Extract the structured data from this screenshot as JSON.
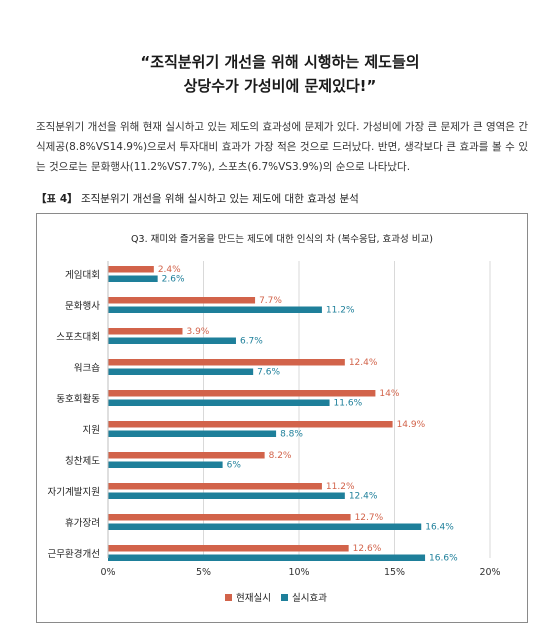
{
  "title_line1": "“조직분위기 개선을 위해 시행하는 제도들의",
  "title_line2": "상당수가 가성비에 문제있다!”",
  "body_text": "조직분위기 개선을 위해 현재 실시하고 있는 제도의 효과성에 문제가 있다. 가성비에 가장 큰 문제가 큰 영역은 간식제공(8.8%VS14.9%)으로서 투자대비 효과가 가장 적은 것으로 드러났다. 반면, 생각보다 큰 효과를 볼 수 있는 것으로는 문화행사(11.2%VS7.7%), 스포츠(6.7%VS3.9%)의 순으로 나타났다.",
  "table_caption_tag": "【표 4】",
  "table_caption_text": "조직분위기 개선을 위해 실시하고 있는 제도에 대한 효과성 분석",
  "chart_data": {
    "type": "bar",
    "orientation": "horizontal",
    "title": "Q3. 재미와 즐거움을 만드는 제도에 대한 인식의 차 (복수응답, 효과성 비교)",
    "categories": [
      "게임대회",
      "문화행사",
      "스포츠대회",
      "워크숍",
      "동호회활동",
      "지원",
      "칭찬제도",
      "자기계발지원",
      "휴가장려",
      "근무환경개선"
    ],
    "series": [
      {
        "name": "현재실시",
        "color": "#d2634a",
        "values": [
          2.4,
          7.7,
          3.9,
          12.4,
          14,
          14.9,
          8.2,
          11.2,
          12.7,
          12.6
        ]
      },
      {
        "name": "실시효과",
        "color": "#1e7f9a",
        "values": [
          2.6,
          11.2,
          6.7,
          7.6,
          11.6,
          8.8,
          6,
          12.4,
          16.4,
          16.6
        ]
      }
    ],
    "value_labels": [
      [
        "2.4%",
        "7.7%",
        "3.9%",
        "12.4%",
        "14%",
        "14.9%",
        "8.2%",
        "11.2%",
        "12.7%",
        "12.6%"
      ],
      [
        "2.6%",
        "11.2%",
        "6.7%",
        "7.6%",
        "11.6%",
        "8.8%",
        "6%",
        "12.4%",
        "16.4%",
        "16.6%"
      ]
    ],
    "xlim": [
      0,
      20
    ],
    "xticks": [
      0,
      5,
      10,
      15,
      20
    ],
    "xtick_labels": [
      "0%",
      "5%",
      "10%",
      "15%",
      "20%"
    ],
    "grid": "vertical",
    "legend_position": "bottom-center"
  }
}
